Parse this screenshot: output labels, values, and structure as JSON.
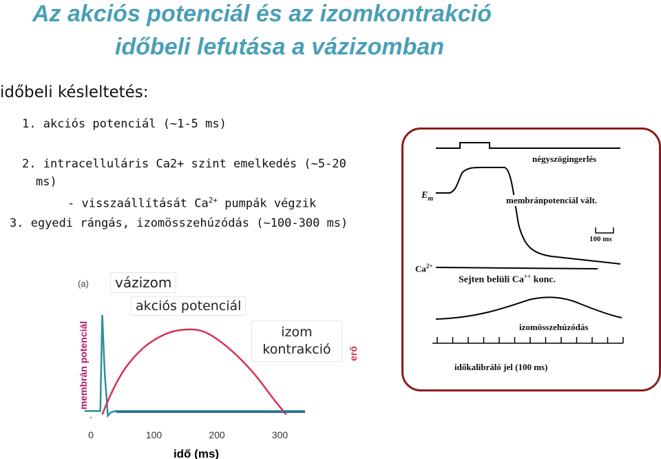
{
  "header": {
    "title_line1": "Az akciós potenciál és az izomkontrakció",
    "title_line2": "időbeli lefutása a vázizomban"
  },
  "content": {
    "subtitle": "időbeli késleltetés:",
    "item1": "1. akciós potenciál (~1-5 ms)",
    "item2_line1": "2. intracelluláris Ca2+ szint emelkedés (~5-20",
    "item2_line2": "ms)",
    "item2_sub_before": "- visszaállítását Ca",
    "item2_sub_sup": "2+",
    "item2_sub_after": " pumpák végzik",
    "item3": "3. egyedi rángás, izomösszehúzódás (~100-300 ms)"
  },
  "left_figure": {
    "panel_letter": "(a)",
    "tag_skeletal": "vázizom",
    "tag_ap": "akciós potenciál",
    "tag_contraction_line1": "izom",
    "tag_contraction_line2": "kontrakció",
    "ylabel_left": "membrán potenciál",
    "ylabel_right": "erő",
    "xlabel": "idő (ms)",
    "colors": {
      "ap": "#2a8f9c",
      "force": "#d9304f",
      "baseline": "#2a5f8a"
    }
  },
  "right_figure": {
    "label_square": "négyszögingerlés",
    "label_em": "E",
    "label_em_sub": "m",
    "label_membrane": "membránpotenciál vált.",
    "scale_label": "100 ms",
    "label_ca": "Ca",
    "label_ca_sup": "2+",
    "label_ca_conc": "Sejten belüli Ca",
    "label_ca_conc_sup": "++",
    "label_ca_conc_after": " konc.",
    "label_contraction": "izomösszehúzódás",
    "label_calibration": "időkalibráló jel (100 ms)",
    "frame_color": "#8b1a1a"
  },
  "chart_data": {
    "type": "line",
    "xlabel": "idő (ms)",
    "ylabel": "membrán potenciál",
    "y2label": "erő",
    "x_ticks": [
      0,
      100,
      200,
      300
    ],
    "xlim": [
      -10,
      340
    ],
    "series": [
      {
        "name": "akciós potenciál",
        "x": [
          -10,
          15,
          18,
          22,
          27,
          32,
          40,
          60,
          340
        ],
        "y": [
          0.08,
          0.08,
          0.9,
          0.4,
          0.04,
          0.07,
          0.08,
          0.08,
          0.08
        ]
      },
      {
        "name": "izom kontrakció",
        "x": [
          18,
          40,
          80,
          120,
          150,
          180,
          220,
          260,
          290,
          310
        ],
        "y": [
          0.05,
          0.35,
          0.62,
          0.75,
          0.78,
          0.77,
          0.62,
          0.4,
          0.18,
          0.05
        ]
      }
    ]
  }
}
